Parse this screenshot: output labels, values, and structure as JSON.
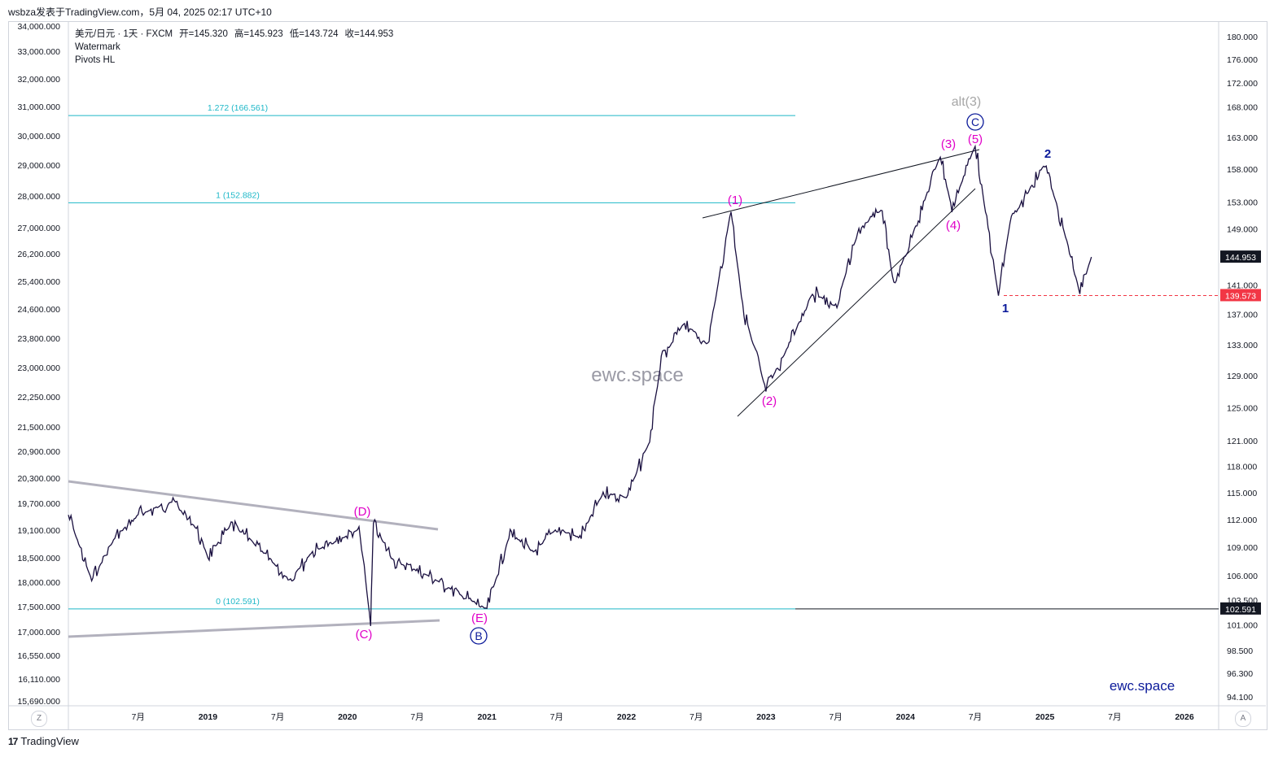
{
  "header": {
    "published": "wsbza发表于TradingView.com，5月 04, 2025 02:17 UTC+10"
  },
  "legend": {
    "symbol": "美元/日元 · 1天 · FXCM",
    "open": "开=145.320",
    "high": "高=145.923",
    "low": "低=143.724",
    "close": "收=144.953",
    "indicator1": "Watermark",
    "indicator2": "Pivots HL"
  },
  "footer": {
    "brand": "TradingView"
  },
  "corners": {
    "left": "Z",
    "right": "A"
  },
  "watermark": "ewc.space",
  "signature": "ewc.space",
  "colors": {
    "candle": "#1a1040",
    "fib": "#1eb8c8",
    "wave_minor": "#e000c8",
    "wave_major": "#0b1a9a",
    "alt": "#a6a6a6",
    "triangle": "#b2b1bd",
    "last_price_bg": "#131722",
    "support_red": "#f23645"
  },
  "chart_data": {
    "type": "candlestick",
    "symbol": "USD/JPY",
    "timeframe": "1D",
    "left_axis_ticks": [
      "34,000.000",
      "33,000.000",
      "32,000.000",
      "31,000.000",
      "30,000.000",
      "29,000.000",
      "28,000.000",
      "27,000.000",
      "26,200.000",
      "25,400.000",
      "24,600.000",
      "23,800.000",
      "23,000.000",
      "22,250.000",
      "21,500.000",
      "20,900.000",
      "20,300.000",
      "19,700.000",
      "19,100.000",
      "18,500.000",
      "18,000.000",
      "17,500.000",
      "17,000.000",
      "16,550.000",
      "16,110.000",
      "15,690.000"
    ],
    "right_axis_ticks": [
      "180.000",
      "176.000",
      "172.000",
      "168.000",
      "163.000",
      "158.000",
      "153.000",
      "149.000",
      "141.000",
      "137.000",
      "133.000",
      "129.000",
      "125.000",
      "121.000",
      "118.000",
      "115.000",
      "112.000",
      "109.000",
      "106.000",
      "103.500",
      "101.000",
      "98.500",
      "96.300",
      "94.100"
    ],
    "x_axis_ticks": [
      "7月",
      "2019",
      "7月",
      "2020",
      "7月",
      "2021",
      "7月",
      "2022",
      "7月",
      "2023",
      "7月",
      "2024",
      "7月",
      "2025",
      "7月",
      "2026"
    ],
    "last_price": "144.953",
    "support_level": "139.573",
    "fib_zero_level": "102.591",
    "fib_levels": [
      {
        "label": "1.272 (166.561)",
        "value": 166.561
      },
      {
        "label": "1 (152.882)",
        "value": 152.882
      },
      {
        "label": "0 (102.591)",
        "value": 102.591
      }
    ],
    "wave_labels": [
      {
        "text": "(C)",
        "date": "2020-03",
        "price": 101.2
      },
      {
        "text": "(D)",
        "date": "2020-03",
        "price": 112.2
      },
      {
        "text": "(E)",
        "date": "2021-01",
        "price": 102.6
      },
      {
        "text": "B",
        "date": "2021-01",
        "price": 102.6,
        "circled": true
      },
      {
        "text": "(1)",
        "date": "2022-10",
        "price": 151.9
      },
      {
        "text": "(2)",
        "date": "2023-01",
        "price": 127.2
      },
      {
        "text": "(3)",
        "date": "2024-04",
        "price": 160.2
      },
      {
        "text": "(4)",
        "date": "2024-05",
        "price": 151.9
      },
      {
        "text": "(5)",
        "date": "2024-07",
        "price": 161.9
      },
      {
        "text": "C",
        "date": "2024-07",
        "price": 161.9,
        "circled": true
      },
      {
        "text": "alt(3)",
        "date": "2024-07",
        "price": 161.9
      },
      {
        "text": "1",
        "date": "2024-09",
        "price": 139.6
      },
      {
        "text": "2",
        "date": "2025-01",
        "price": 158.9
      }
    ],
    "ohlc_path": [
      [
        "2018-01",
        112.5
      ],
      [
        "2018-03",
        105.5
      ],
      [
        "2018-05",
        110.0
      ],
      [
        "2018-07",
        112.5
      ],
      [
        "2018-10",
        114.0
      ],
      [
        "2018-12",
        111.0
      ],
      [
        "2019-01",
        108.0
      ],
      [
        "2019-03",
        111.5
      ],
      [
        "2019-05",
        109.5
      ],
      [
        "2019-08",
        105.5
      ],
      [
        "2019-10",
        108.5
      ],
      [
        "2019-12",
        109.5
      ],
      [
        "2020-02",
        111.0
      ],
      [
        "2020-03",
        101.2
      ],
      [
        "2020-03b",
        111.5
      ],
      [
        "2020-05",
        107.5
      ],
      [
        "2020-08",
        106.0
      ],
      [
        "2020-10",
        104.5
      ],
      [
        "2021-01",
        102.6
      ],
      [
        "2021-03",
        110.5
      ],
      [
        "2021-05",
        108.5
      ],
      [
        "2021-07",
        111.0
      ],
      [
        "2021-09",
        110.0
      ],
      [
        "2021-11",
        115.0
      ],
      [
        "2022-01",
        114.5
      ],
      [
        "2022-03",
        121.0
      ],
      [
        "2022-04",
        131.0
      ],
      [
        "2022-06",
        136.0
      ],
      [
        "2022-08",
        133.0
      ],
      [
        "2022-10",
        151.9
      ],
      [
        "2022-11",
        138.0
      ],
      [
        "2023-01",
        127.2
      ],
      [
        "2023-03",
        133.0
      ],
      [
        "2023-05",
        140.0
      ],
      [
        "2023-07",
        138.0
      ],
      [
        "2023-09",
        149.0
      ],
      [
        "2023-11",
        151.9
      ],
      [
        "2023-12",
        141.0
      ],
      [
        "2024-02",
        150.0
      ],
      [
        "2024-04",
        160.2
      ],
      [
        "2024-05",
        151.9
      ],
      [
        "2024-07",
        161.9
      ],
      [
        "2024-09",
        139.6
      ],
      [
        "2024-10",
        150.0
      ],
      [
        "2025-01",
        158.9
      ],
      [
        "2025-03",
        146.5
      ],
      [
        "2025-04",
        139.9
      ],
      [
        "2025-05",
        144.953
      ]
    ]
  }
}
